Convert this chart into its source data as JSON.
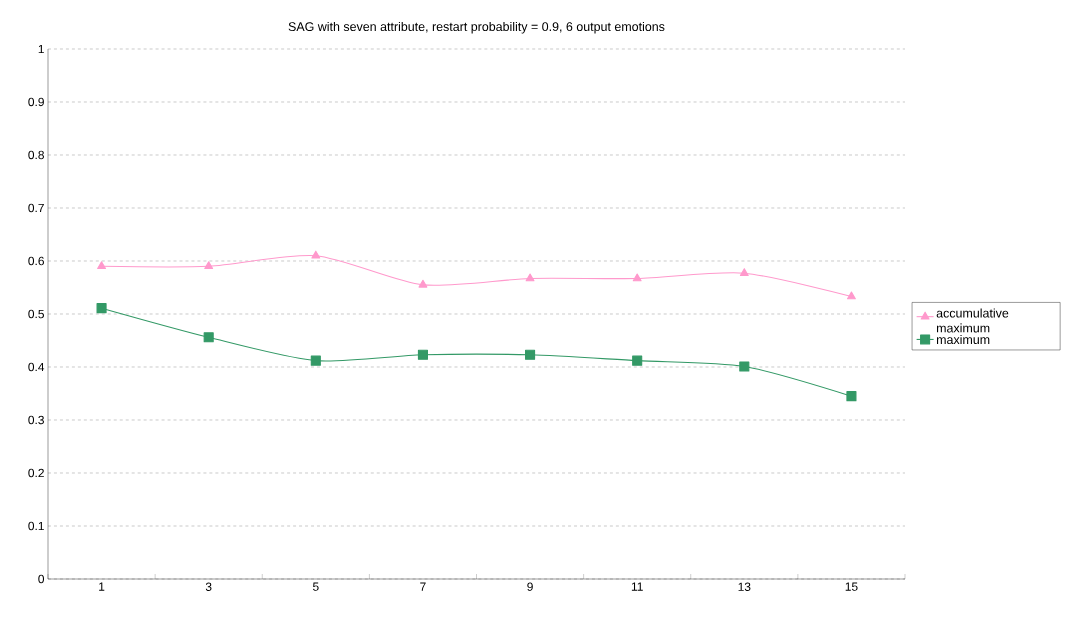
{
  "chart_data": {
    "type": "line",
    "title": "SAG with seven attribute, restart probability = 0.9, 6 output emotions",
    "categories": [
      "1",
      "3",
      "5",
      "7",
      "9",
      "11",
      "13",
      "15"
    ],
    "series": [
      {
        "name": "accumulative maximum",
        "color": "#ff99cc",
        "marker": "triangle",
        "values": [
          0.59,
          0.59,
          0.61,
          0.555,
          0.567,
          0.567,
          0.577,
          0.533
        ]
      },
      {
        "name": "maximum",
        "color": "#339966",
        "marker": "square",
        "values": [
          0.511,
          0.456,
          0.412,
          0.423,
          0.423,
          0.412,
          0.401,
          0.345
        ]
      }
    ],
    "ylim": [
      0,
      1
    ],
    "yticks": [
      0,
      0.1,
      0.2,
      0.3,
      0.4,
      0.5,
      0.6,
      0.7,
      0.8,
      0.9,
      1
    ],
    "grid": "y",
    "legend": "right",
    "line_style": "solid"
  }
}
